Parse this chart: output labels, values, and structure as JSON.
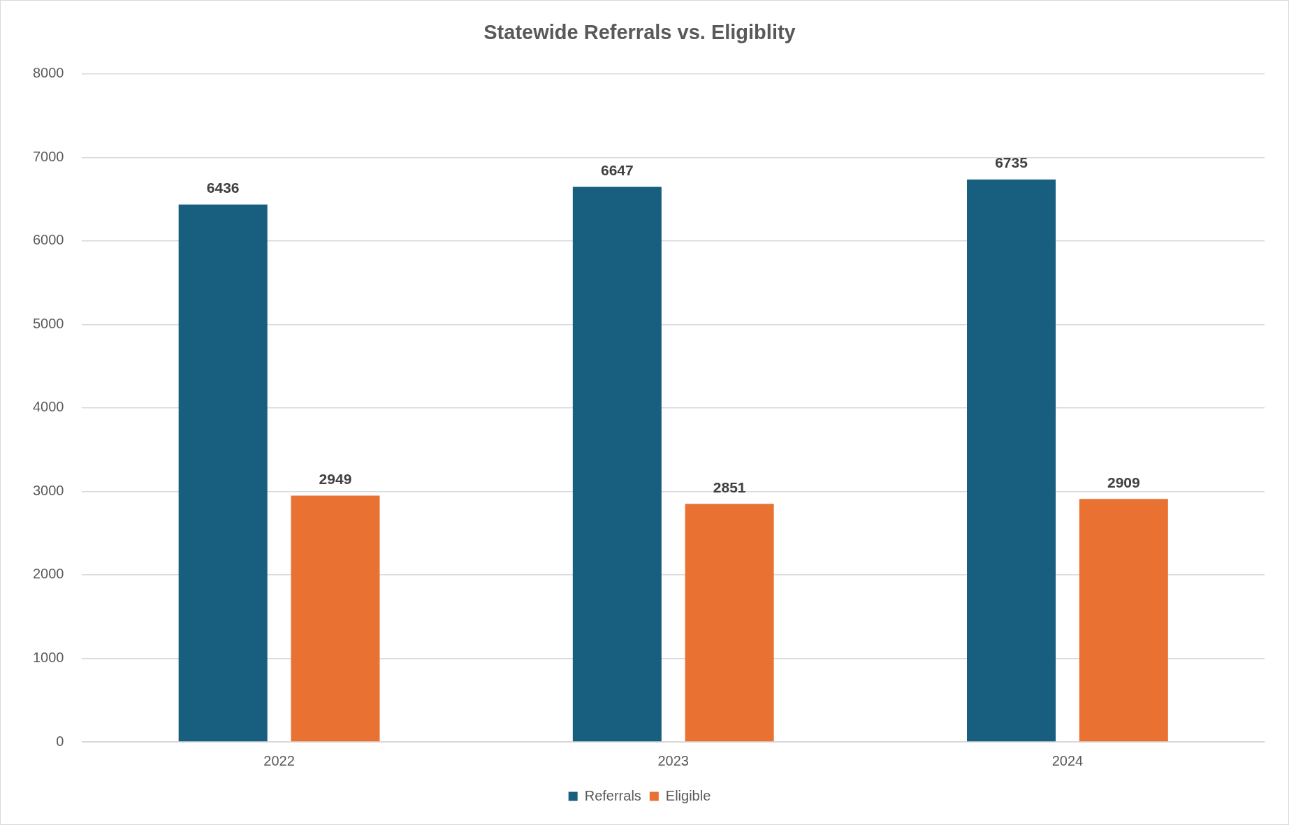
{
  "chart_data": {
    "type": "bar",
    "title": "Statewide Referrals vs. Eligiblity",
    "categories": [
      "2022",
      "2023",
      "2024"
    ],
    "series": [
      {
        "name": "Referrals",
        "color": "#175e7f",
        "values": [
          6436,
          6647,
          6735
        ]
      },
      {
        "name": "Eligible",
        "color": "#e97132",
        "values": [
          2949,
          2851,
          2909
        ]
      }
    ],
    "ylim": [
      0,
      8000
    ],
    "yticks": [
      0,
      1000,
      2000,
      3000,
      4000,
      5000,
      6000,
      7000,
      8000
    ],
    "grid": "y",
    "legend": "bottom",
    "data_labels": true
  }
}
